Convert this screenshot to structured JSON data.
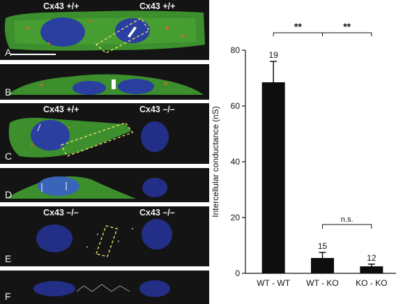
{
  "panels": [
    {
      "letter": "A",
      "left_genotype": "Cx43 +/+",
      "right_genotype": "Cx43 +/+"
    },
    {
      "letter": "B"
    },
    {
      "letter": "C",
      "left_genotype": "Cx43 +/+",
      "right_genotype": "Cx43 –/–"
    },
    {
      "letter": "D"
    },
    {
      "letter": "E",
      "left_genotype": "Cx43 –/–",
      "right_genotype": "Cx43 –/–"
    },
    {
      "letter": "F"
    }
  ],
  "chart_data": {
    "type": "bar",
    "categories": [
      "WT - WT",
      "WT - KO",
      "KO - KO"
    ],
    "values": [
      68.5,
      5.5,
      2.5
    ],
    "errors": [
      7.5,
      2.0,
      0.8
    ],
    "n_labels": [
      "19",
      "15",
      "12"
    ],
    "ylabel": "Intercellular conductance (nS)",
    "ylim": [
      0,
      80
    ],
    "yticks": [
      0,
      20,
      40,
      60,
      80
    ],
    "grid": false,
    "bar_color": "#0d0d0d",
    "significance": [
      {
        "from": 0,
        "to": 1,
        "label": "**"
      },
      {
        "from": 1,
        "to": 2,
        "label": "**"
      },
      {
        "from": 1,
        "to": 2,
        "label": "n.s.",
        "level": "low"
      }
    ]
  }
}
